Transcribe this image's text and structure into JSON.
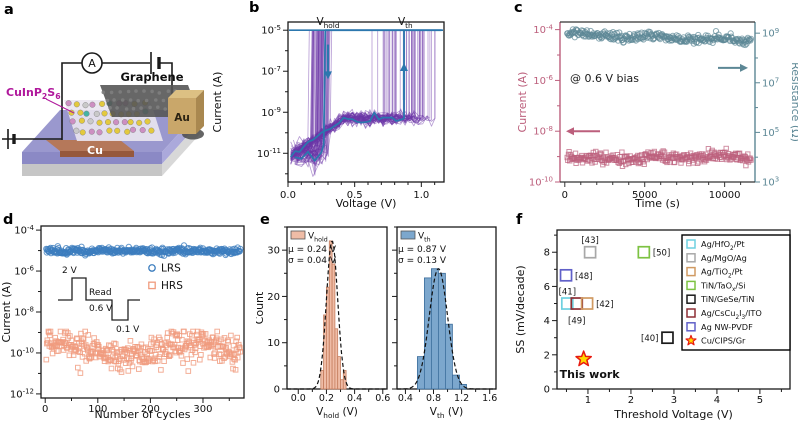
{
  "panels": {
    "a": "a",
    "b": "b",
    "c": "c",
    "d": "d",
    "e": "e",
    "f": "f"
  },
  "panel_a": {
    "labels": {
      "material": "CuInP_{2}S_{6}",
      "graphene": "Graphene",
      "au": "Au",
      "cu": "Cu",
      "ammeter": "A"
    },
    "colors": {
      "material_label": "#B0189C",
      "substrate_top": "#9A98CE",
      "cu_electrode": "#B5785A",
      "au_electrode": "#C9A76A",
      "graphene_sheet": "#565656",
      "atoms": [
        "#E3C93E",
        "#C9C9C9",
        "#CD8FC2",
        "#45B3A4"
      ]
    }
  },
  "chart_data": [
    {
      "id": "b",
      "type": "line",
      "xlabel": "Voltage (V)",
      "ylabel": "Current (A)",
      "xlim": [
        0,
        1.17
      ],
      "xticks": [
        0,
        0.5,
        1
      ],
      "xtick_labels": [
        "0.0",
        "0.5",
        "1.0"
      ],
      "x_minor_step": 0.1,
      "y_exp_range": [
        -12.4,
        -4.6
      ],
      "yticks_exp": [
        -5,
        -7,
        -9,
        -11
      ],
      "annotations": [
        {
          "text": "V_{hold}",
          "x": 0.3
        },
        {
          "text": "V_{th}",
          "x": 0.88
        }
      ],
      "compliance_current_A": 1e-05,
      "num_cycles": 50,
      "v_th": {
        "mean": 0.87,
        "sigma": 0.13
      },
      "v_hold": {
        "mean": 0.24,
        "sigma": 0.04
      },
      "off_current_A": 5e-10,
      "noise_floor_A": 1e-11,
      "sweep_max_V": 1.15,
      "colors": {
        "cycles": "#6C35A8",
        "typical": "#2C77AE"
      }
    },
    {
      "id": "c",
      "type": "scatter",
      "xlabel": "Time (s)",
      "xlim": [
        -300,
        11900
      ],
      "xticks": [
        0,
        5000,
        10000
      ],
      "xtick_labels": [
        "0",
        "5000",
        "10000"
      ],
      "x_minor_step": 1000,
      "annotation": "@ 0.6 V bias",
      "left_axis": {
        "label": "Current (A)",
        "exp_range": [
          -10,
          -3.7
        ],
        "ticks_exp": [
          -4,
          -6,
          -8,
          -10
        ],
        "color": "#BC5F7C"
      },
      "right_axis": {
        "label": "Resistance (Ω)",
        "exp_range": [
          3,
          9.45
        ],
        "ticks_exp": [
          9,
          7,
          5,
          3
        ],
        "color": "#5C8795"
      },
      "series": [
        {
          "name": "current",
          "axis": "left",
          "marker": "square",
          "color": "#BC5F7C",
          "level_exp": -9.1,
          "drift_exp": 0.1,
          "spread_exp": 0.12,
          "clamp": [
            -9.6,
            -8.5
          ],
          "points": 290,
          "t_range": [
            150,
            11650
          ]
        },
        {
          "name": "resistance",
          "axis": "right",
          "marker": "circle",
          "color": "#5C8795",
          "level_exp": 8.95,
          "drift_exp": -0.25,
          "spread_exp": 0.09,
          "clamp": [
            8.2,
            9.3
          ],
          "points": 290,
          "t_range": [
            150,
            11650
          ]
        }
      ]
    },
    {
      "id": "d",
      "type": "scatter",
      "xlabel": "Number of cycles",
      "ylabel": "Current (A)",
      "xlim": [
        -8,
        378
      ],
      "xticks": [
        0,
        100,
        200,
        300
      ],
      "xtick_labels": [
        "0",
        "100",
        "200",
        "300"
      ],
      "x_minor_step": 50,
      "y_exp_range": [
        -12.2,
        -3.8
      ],
      "yticks_exp": [
        -4,
        -6,
        -8,
        -10,
        -12
      ],
      "legend": [
        {
          "label": "LRS",
          "marker": "circle",
          "color": "#3C7DBE"
        },
        {
          "label": "HRS",
          "marker": "square",
          "color": "#F09B7E"
        }
      ],
      "series": [
        {
          "name": "LRS",
          "marker": "circle",
          "color": "#3C7DBE",
          "level_exp": -5.02,
          "spread_exp": 0.08,
          "clamp": [
            -5.3,
            -4.75
          ],
          "wobble": 0,
          "points": 370
        },
        {
          "name": "HRS",
          "marker": "square",
          "color": "#F09B7E",
          "level_exp": -9.85,
          "spread_exp": 0.38,
          "clamp": [
            -11.5,
            -8.95
          ],
          "wobble": 1,
          "points": 370
        }
      ],
      "inset": {
        "labels": {
          "pulse": "2 V",
          "read": "Read",
          "read_v": "0.6 V",
          "reset": "0.1 V"
        }
      }
    },
    {
      "id": "e1",
      "type": "histogram",
      "ylabel": "Count",
      "xlabel": "V_{hold} (V)",
      "legend_label": "V_{hold}",
      "stats": [
        "μ = 0.24 V",
        "σ = 0.04 V"
      ],
      "xlim": [
        -0.08,
        0.63
      ],
      "xticks": [
        0,
        0.2,
        0.4,
        0.6
      ],
      "xtick_labels": [
        "0.0",
        "0.2",
        "0.4",
        "0.6"
      ],
      "x_minor_step": 0.1,
      "ylim": [
        0,
        35
      ],
      "yticks": [
        0,
        10,
        20,
        30
      ],
      "bins_start": 0.16,
      "bin_width": 0.02,
      "counts": [
        4,
        16,
        22,
        32,
        27,
        13,
        7,
        2,
        4
      ],
      "gauss": {
        "mu": 0.24,
        "sigma": 0.04,
        "amp": 32
      },
      "bar_fill": "#EFBCA6",
      "bar_edge": "#C57E5F"
    },
    {
      "id": "e2",
      "type": "histogram",
      "xlabel": "V_{th} (V)",
      "legend_label": "V_{th}",
      "stats": [
        "μ = 0.87 V",
        "σ = 0.13 V"
      ],
      "xlim": [
        0.28,
        1.69
      ],
      "xticks": [
        0.4,
        0.8,
        1.2,
        1.6
      ],
      "xtick_labels": [
        "0.4",
        "0.8",
        "1.2",
        "1.6"
      ],
      "x_minor_step": 0.2,
      "ylim": [
        0,
        35
      ],
      "yticks": [
        0,
        10,
        20,
        30
      ],
      "bins_start": 0.57,
      "bin_width": 0.1,
      "counts": [
        7,
        24,
        26,
        25,
        14,
        3,
        1
      ],
      "gauss": {
        "mu": 0.87,
        "sigma": 0.13,
        "amp": 26
      },
      "bar_fill": "#7CA7CD",
      "bar_edge": "#3D6E9C"
    },
    {
      "id": "f",
      "type": "scatter",
      "xlabel": "Threshold Voltage (V)",
      "ylabel": "SS (mV/decade)",
      "xlim": [
        0.28,
        5.7
      ],
      "xticks": [
        1,
        2,
        3,
        4,
        5
      ],
      "xtick_labels": [
        "1",
        "2",
        "3",
        "4",
        "5"
      ],
      "x_minor_step": 0.5,
      "ylim": [
        0,
        9.3
      ],
      "yticks": [
        0,
        2,
        4,
        6,
        8
      ],
      "points": [
        {
          "ref": "[43]",
          "x": 1.05,
          "y": 8.0,
          "color": "#A8A8A8",
          "label_pos": "top"
        },
        {
          "ref": "[50]",
          "x": 2.3,
          "y": 8.0,
          "color": "#7DC242",
          "label_pos": "right"
        },
        {
          "ref": "[48]",
          "x": 0.49,
          "y": 6.65,
          "color": "#6060C8",
          "label_pos": "right"
        },
        {
          "ref": "[41]",
          "x": 0.52,
          "y": 5.0,
          "color": "#6ED0E0",
          "label_pos": "top"
        },
        {
          "ref": "[49]",
          "x": 0.74,
          "y": 5.0,
          "color": "#8E2F35",
          "label_pos": "bottom"
        },
        {
          "ref": "[42]",
          "x": 0.98,
          "y": 5.0,
          "color": "#D09A62",
          "label_pos": "right"
        },
        {
          "ref": "[40]",
          "x": 2.85,
          "y": 3.0,
          "color": "#1A1A1A",
          "label_pos": "left"
        },
        {
          "ref": "This work",
          "x": 0.9,
          "y": 1.75,
          "marker": "star",
          "color": "#E8190F",
          "fill": "#FFD700",
          "label_pos": "bottom"
        }
      ],
      "legend": [
        {
          "label": "Ag/HfO_{2}/Pt",
          "marker": "square",
          "color": "#6ED0E0"
        },
        {
          "label": "Ag/MgO/Ag",
          "marker": "square",
          "color": "#A8A8A8"
        },
        {
          "label": "Ag/TiO_{2}/Pt",
          "marker": "square",
          "color": "#D09A62"
        },
        {
          "label": "TiN/TaO_{x}/Si",
          "marker": "square",
          "color": "#7DC242"
        },
        {
          "label": "TiN/GeSe/TiN",
          "marker": "square",
          "color": "#1A1A1A"
        },
        {
          "label": "Ag/CsCu_{2}I_{3}/ITO",
          "marker": "square",
          "color": "#8E2F35"
        },
        {
          "label": "Ag NW-PVDF",
          "marker": "square",
          "color": "#6060C8"
        },
        {
          "label": "Cu/CIPS/Gr",
          "marker": "star",
          "color": "#E8190F",
          "fill": "#FFD700"
        }
      ]
    }
  ]
}
